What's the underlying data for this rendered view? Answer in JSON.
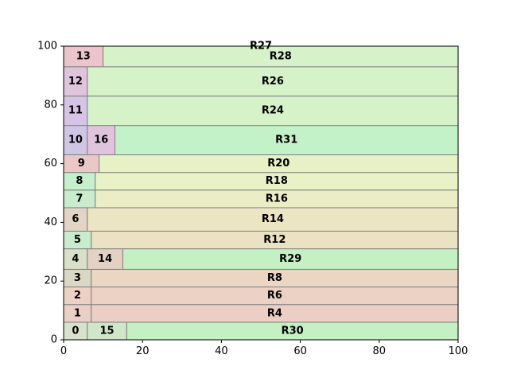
{
  "chart_data": {
    "type": "treemap",
    "xlim": [
      0,
      100
    ],
    "ylim": [
      0,
      100
    ],
    "x_ticks": [
      0,
      20,
      40,
      60,
      80,
      100
    ],
    "y_ticks": [
      0,
      20,
      40,
      60,
      80,
      100
    ],
    "rects": [
      {
        "label": "0",
        "x0": 0,
        "y0": 0,
        "x1": 6,
        "y1": 6,
        "color": "#d6e2cc"
      },
      {
        "label": "15",
        "x0": 6,
        "y0": 0,
        "x1": 16,
        "y1": 6,
        "color": "#cfe6c8"
      },
      {
        "label": "R30",
        "x0": 16,
        "y0": 0,
        "x1": 100,
        "y1": 6,
        "color": "#c4f0c4"
      },
      {
        "label": "1",
        "x0": 0,
        "y0": 6,
        "x1": 7,
        "y1": 12,
        "color": "#ebcfc4"
      },
      {
        "label": "R4",
        "x0": 7,
        "y0": 6,
        "x1": 100,
        "y1": 12,
        "color": "#ebcfc4"
      },
      {
        "label": "2",
        "x0": 0,
        "y0": 12,
        "x1": 7,
        "y1": 18,
        "color": "#ebd2c4"
      },
      {
        "label": "R6",
        "x0": 7,
        "y0": 12,
        "x1": 100,
        "y1": 18,
        "color": "#ebd2c4"
      },
      {
        "label": "3",
        "x0": 0,
        "y0": 18,
        "x1": 7,
        "y1": 24,
        "color": "#dad7c4"
      },
      {
        "label": "R8",
        "x0": 7,
        "y0": 18,
        "x1": 100,
        "y1": 24,
        "color": "#ebd6c4"
      },
      {
        "label": "4",
        "x0": 0,
        "y0": 24,
        "x1": 6,
        "y1": 31,
        "color": "#d9dfc8"
      },
      {
        "label": "14",
        "x0": 6,
        "y0": 24,
        "x1": 15,
        "y1": 31,
        "color": "#e3d1c6"
      },
      {
        "label": "R29",
        "x0": 15,
        "y0": 24,
        "x1": 100,
        "y1": 31,
        "color": "#c4f0c4"
      },
      {
        "label": "5",
        "x0": 0,
        "y0": 31,
        "x1": 7,
        "y1": 37,
        "color": "#c8eccc"
      },
      {
        "label": "R12",
        "x0": 7,
        "y0": 31,
        "x1": 100,
        "y1": 37,
        "color": "#ebe2c4"
      },
      {
        "label": "6",
        "x0": 0,
        "y0": 37,
        "x1": 6,
        "y1": 45,
        "color": "#e4d4c6"
      },
      {
        "label": "R14",
        "x0": 6,
        "y0": 37,
        "x1": 100,
        "y1": 45,
        "color": "#ebe5c4"
      },
      {
        "label": "7",
        "x0": 0,
        "y0": 45,
        "x1": 8,
        "y1": 51,
        "color": "#c8eccc"
      },
      {
        "label": "R16",
        "x0": 8,
        "y0": 45,
        "x1": 100,
        "y1": 51,
        "color": "#ebeec4"
      },
      {
        "label": "8",
        "x0": 0,
        "y0": 51,
        "x1": 8,
        "y1": 57,
        "color": "#c4f0cc"
      },
      {
        "label": "R18",
        "x0": 8,
        "y0": 51,
        "x1": 100,
        "y1": 57,
        "color": "#e8f2c4"
      },
      {
        "label": "9",
        "x0": 0,
        "y0": 57,
        "x1": 9,
        "y1": 63,
        "color": "#ebc8c8"
      },
      {
        "label": "R20",
        "x0": 9,
        "y0": 57,
        "x1": 100,
        "y1": 63,
        "color": "#e6f2c6"
      },
      {
        "label": "10",
        "x0": 0,
        "y0": 63,
        "x1": 6,
        "y1": 73,
        "color": "#cfc6e6"
      },
      {
        "label": "16",
        "x0": 6,
        "y0": 63,
        "x1": 13,
        "y1": 73,
        "color": "#dfc4dc"
      },
      {
        "label": "R31",
        "x0": 13,
        "y0": 63,
        "x1": 100,
        "y1": 73,
        "color": "#c4f2c8"
      },
      {
        "label": "11",
        "x0": 0,
        "y0": 73,
        "x1": 6,
        "y1": 83,
        "color": "#d6c4e6"
      },
      {
        "label": "R24",
        "x0": 6,
        "y0": 73,
        "x1": 100,
        "y1": 83,
        "color": "#d6f2c8"
      },
      {
        "label": "12",
        "x0": 0,
        "y0": 83,
        "x1": 6,
        "y1": 93,
        "color": "#dfc4dc"
      },
      {
        "label": "R26",
        "x0": 6,
        "y0": 83,
        "x1": 100,
        "y1": 93,
        "color": "#d6f2c8"
      },
      {
        "label": "13",
        "x0": 0,
        "y0": 93,
        "x1": 10,
        "y1": 100,
        "color": "#ebc4cc"
      },
      {
        "label": "R28",
        "x0": 10,
        "y0": 93,
        "x1": 100,
        "y1": 100,
        "color": "#d6f2c8"
      },
      {
        "label": "R27",
        "x0": 0,
        "y0": 100,
        "x1": 100,
        "y1": 100,
        "color": "#d6f2c8"
      }
    ]
  }
}
